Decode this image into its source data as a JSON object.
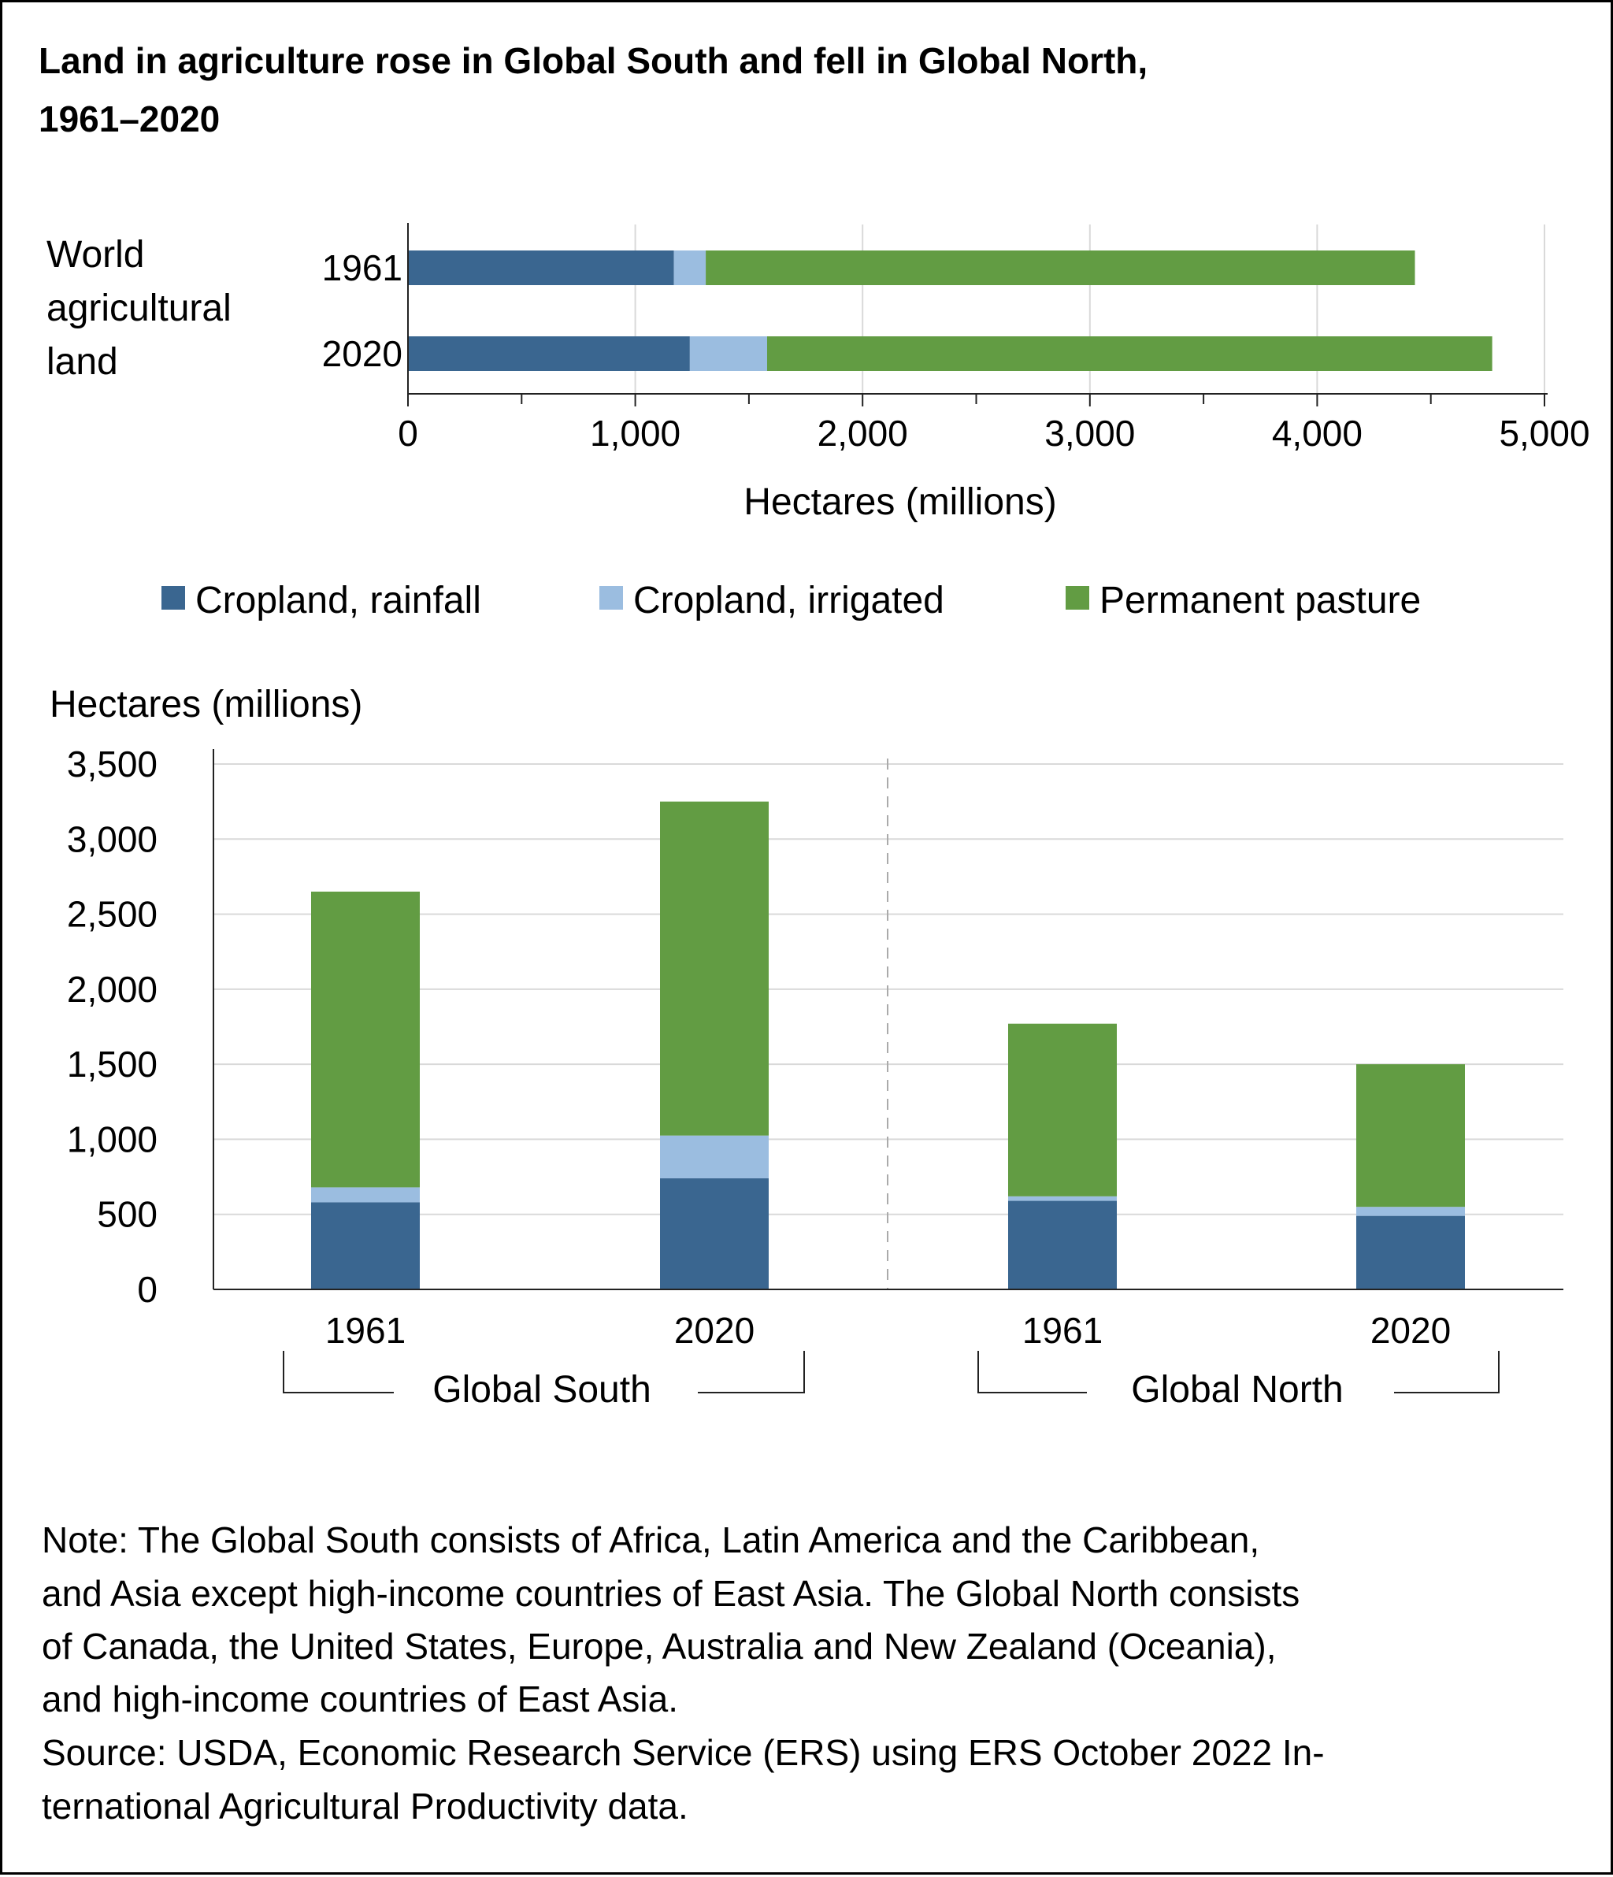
{
  "title_lines": [
    "Land in agriculture rose in Global South and fell in Global North,",
    "1961–2020"
  ],
  "colors": {
    "rainfall": "#3a6690",
    "irrigated": "#9bbde0",
    "pasture": "#629c43",
    "grid": "#d9d9d9",
    "axis": "#222222"
  },
  "chart_data": [
    {
      "type": "bar",
      "orientation": "horizontal",
      "stacked": true,
      "panel_label_lines": [
        "World",
        "agricultural",
        "land"
      ],
      "categories": [
        "1961",
        "2020"
      ],
      "series": [
        {
          "name": "Cropland, rainfall",
          "values": [
            1170,
            1240
          ]
        },
        {
          "name": "Cropland, irrigated",
          "values": [
            140,
            340
          ]
        },
        {
          "name": "Permanent pasture",
          "values": [
            3120,
            3190
          ]
        }
      ],
      "xlabel": "Hectares (millions)",
      "xlim": [
        0,
        5000
      ],
      "ticks": [
        0,
        1000,
        2000,
        3000,
        4000,
        5000
      ],
      "tick_labels": [
        "0",
        "1,000",
        "2,000",
        "3,000",
        "4,000",
        "5,000"
      ],
      "grid": true
    },
    {
      "type": "bar",
      "orientation": "vertical",
      "stacked": true,
      "categories": [
        "1961",
        "2020",
        "1961",
        "2020"
      ],
      "groups": [
        "Global South",
        "Global North"
      ],
      "series": [
        {
          "name": "Cropland, rainfall",
          "values": [
            580,
            740,
            590,
            490
          ]
        },
        {
          "name": "Cropland, irrigated",
          "values": [
            100,
            285,
            30,
            60
          ]
        },
        {
          "name": "Permanent pasture",
          "values": [
            1970,
            2225,
            1150,
            950
          ]
        }
      ],
      "ylabel": "Hectares (millions)",
      "ylim": [
        0,
        3500
      ],
      "ticks": [
        0,
        500,
        1000,
        1500,
        2000,
        2500,
        3000,
        3500
      ],
      "tick_labels": [
        "0",
        "500",
        "1,000",
        "1,500",
        "2,000",
        "2,500",
        "3,000",
        "3,500"
      ],
      "grid": true
    }
  ],
  "legend": [
    "Cropland, rainfall",
    "Cropland, irrigated",
    "Permanent pasture"
  ],
  "note_lines": [
    "Note: The Global South consists of Africa, Latin America and the Caribbean,",
    "and Asia except high-income countries of East Asia. The Global North consists",
    "of Canada, the United States, Europe, Australia and New Zealand (Oceania),",
    "and high-income countries of East Asia.",
    "Source: USDA, Economic Research Service (ERS) using ERS October 2022 In-",
    "ternational Agricultural Productivity data."
  ]
}
